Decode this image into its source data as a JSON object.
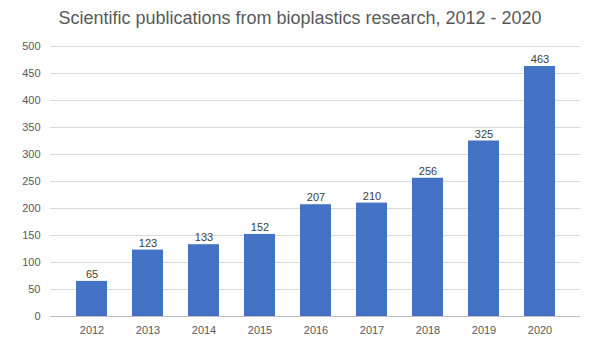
{
  "chart_data": {
    "type": "bar",
    "title": "Scientific publications from bioplastics research, 2012 - 2020",
    "categories": [
      "2012",
      "2013",
      "2014",
      "2015",
      "2016",
      "2017",
      "2018",
      "2019",
      "2020"
    ],
    "values": [
      65,
      123,
      133,
      152,
      207,
      210,
      256,
      325,
      463
    ],
    "color": "#4472c4",
    "ylim": [
      0,
      500
    ],
    "yticks": [
      0,
      50,
      100,
      150,
      200,
      250,
      300,
      350,
      400,
      450,
      500
    ],
    "grid": true,
    "data_labels": true
  }
}
